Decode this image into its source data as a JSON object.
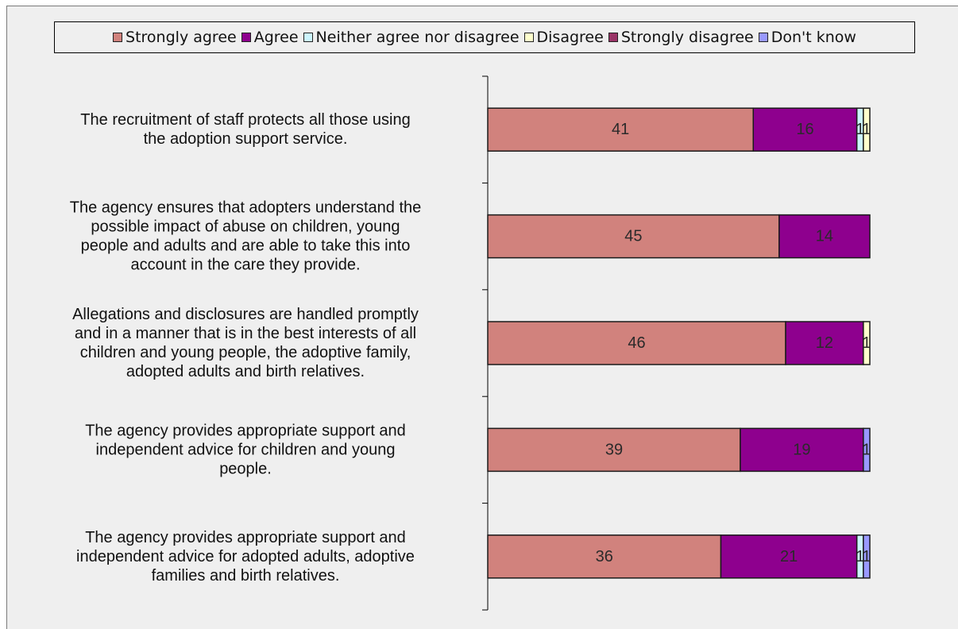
{
  "chart_data": {
    "type": "bar",
    "orientation": "horizontal",
    "stacked": true,
    "legend_position": "top",
    "grid": false,
    "categories": [
      [
        "The recruitment of staff protects all those using",
        "the adoption support service."
      ],
      [
        "The agency ensures that adopters understand the",
        "possible impact of abuse on children, young",
        "people and adults and are able to take this into",
        "account in the care they provide."
      ],
      [
        "Allegations and disclosures are handled promptly",
        "and in a manner that is in the best interests of all",
        "children and young people, the adoptive family,",
        "adopted adults and birth relatives."
      ],
      [
        "The agency provides appropriate support and",
        "independent advice for children and young",
        "people."
      ],
      [
        "The agency provides appropriate support and",
        "independent advice for adopted adults, adoptive",
        "families and birth relatives."
      ]
    ],
    "series": [
      {
        "name": "Strongly agree",
        "color": "#D1827D",
        "values": [
          41,
          45,
          46,
          39,
          36
        ]
      },
      {
        "name": "Agree",
        "color": "#8E008E",
        "values": [
          16,
          14,
          12,
          19,
          21
        ]
      },
      {
        "name": "Neither agree nor disagree",
        "color": "#CCF5FF",
        "values": [
          1,
          0,
          0,
          0,
          1
        ]
      },
      {
        "name": "Disagree",
        "color": "#FFFFCC",
        "values": [
          1,
          0,
          1,
          0,
          0
        ]
      },
      {
        "name": "Strongly disagree",
        "color": "#993366",
        "values": [
          0,
          0,
          0,
          0,
          0
        ]
      },
      {
        "name": "Don't know",
        "color": "#9999FF",
        "values": [
          0,
          0,
          0,
          1,
          1
        ]
      }
    ],
    "xlim": [
      0,
      59
    ]
  }
}
